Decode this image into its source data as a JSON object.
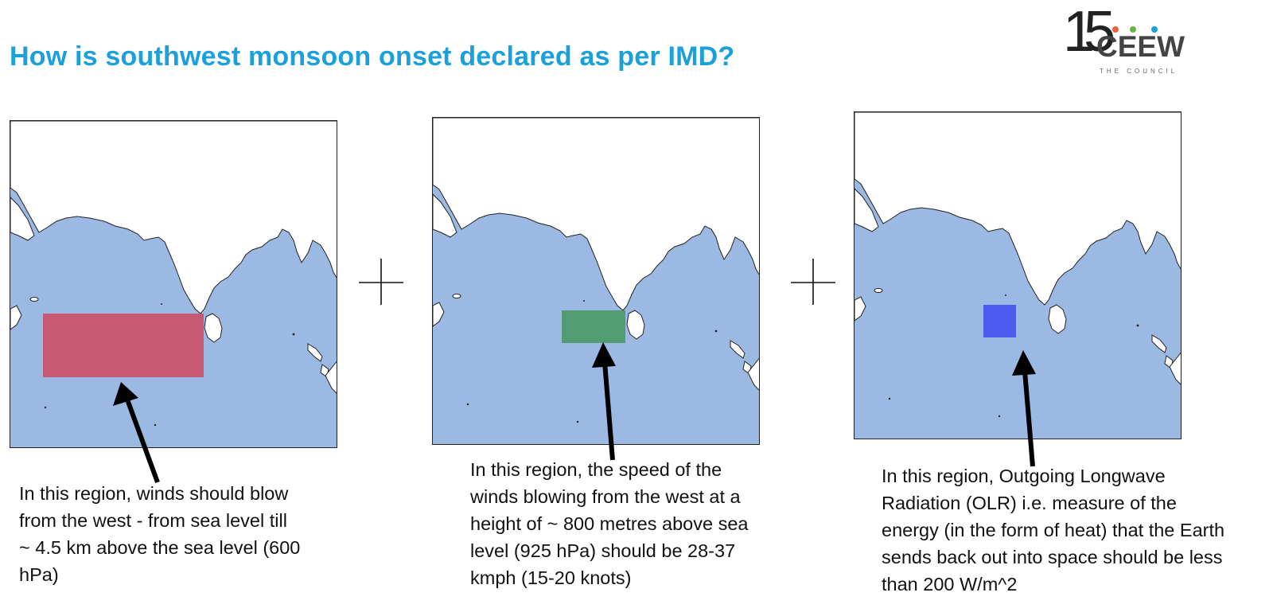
{
  "slide": {
    "title": "How is southwest monsoon onset declared as per IMD?"
  },
  "logo": {
    "number": "15",
    "wordmark": "CEEW",
    "subtitle": "THE COUNCIL",
    "dot_colors": [
      "#e8643c",
      "#6db33f",
      "#1ca0dc"
    ]
  },
  "colors": {
    "title": "#1ca0dc",
    "ocean": "#9bb9e2",
    "land": "#ffffff",
    "coast": "#222222",
    "region_1": "#c9536b",
    "region_2": "#4e9a6a",
    "region_3": "#4a55ee"
  },
  "panels": [
    {
      "region_color": "#c9536b",
      "caption_lines": [
        "In this region, winds should blow",
        "from the west - from sea level till",
        "~ 4.5 km above the sea level (600",
        "hPa)"
      ]
    },
    {
      "region_color": "#4e9a6a",
      "caption_lines": [
        "In this region, the speed of the",
        "winds blowing from the west at a",
        "height of ~ 800 metres above sea",
        "level (925 hPa) should be 28-37",
        "kmph (15-20 knots)"
      ]
    },
    {
      "region_color": "#4a55ee",
      "caption_lines": [
        "In this region, Outgoing Longwave",
        "Radiation (OLR) i.e. measure of the",
        "energy (in the form of heat) that the Earth",
        "sends back out into space should be less",
        "than 200 W/m^2"
      ]
    }
  ],
  "icons": [
    "plus-icon",
    "arrow-icon"
  ]
}
